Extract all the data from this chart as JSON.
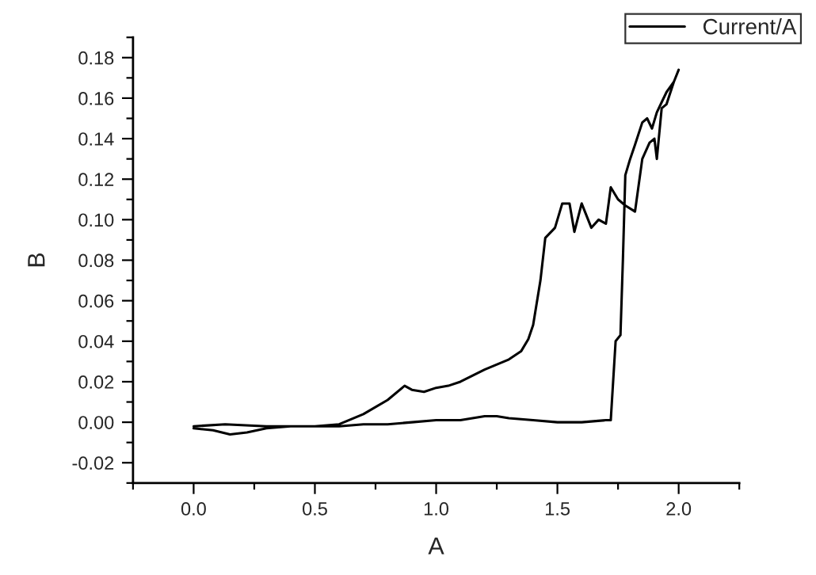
{
  "chart_data": {
    "type": "line",
    "xlabel": "A",
    "ylabel": "B",
    "xlim": [
      -0.25,
      2.25
    ],
    "xticks": [
      {
        "value": 0,
        "label": "0.0"
      },
      0.5,
      {
        "value": 1,
        "label": "1.0"
      },
      1.5,
      {
        "value": 2,
        "label": "2.0"
      }
    ],
    "ylim": [
      -0.03,
      0.19
    ],
    "yticks": [
      -0.02,
      {
        "value": 0,
        "label": "0.00"
      },
      0.02,
      0.04,
      0.06,
      0.08,
      {
        "value": 0.1,
        "label": "0.10"
      },
      0.12,
      0.14,
      0.16,
      0.18
    ],
    "grid": false,
    "legend": "top right",
    "marker": "none",
    "line_style": "solid",
    "series": [
      {
        "name": "Current/A",
        "color": "#000000",
        "x": [
          0,
          0.08,
          0.15,
          0.22,
          0.3,
          0.4,
          0.5,
          0.6,
          0.7,
          0.8,
          0.9,
          1.0,
          1.1,
          1.2,
          1.25,
          1.3,
          1.4,
          1.5,
          1.6,
          1.7,
          1.72,
          1.74,
          1.76,
          1.77,
          1.78,
          1.8,
          1.82,
          1.85,
          1.87,
          1.89,
          1.91,
          1.93,
          1.95,
          1.98,
          2.0,
          1.98,
          1.95,
          1.93,
          1.91,
          1.9,
          1.88,
          1.85,
          1.82,
          1.78,
          1.75,
          1.72,
          1.7,
          1.67,
          1.64,
          1.6,
          1.57,
          1.55,
          1.52,
          1.49,
          1.45,
          1.43,
          1.4,
          1.38,
          1.35,
          1.3,
          1.2,
          1.1,
          1.05,
          1.0,
          0.95,
          0.9,
          0.87,
          0.8,
          0.7,
          0.6,
          0.5,
          0.4,
          0.3,
          0.13,
          0
        ],
        "values": [
          -0.003,
          -0.004,
          -0.006,
          -0.005,
          -0.003,
          -0.002,
          -0.002,
          -0.002,
          -0.001,
          -0.001,
          0,
          0.001,
          0.001,
          0.003,
          0.003,
          0.002,
          0.001,
          0,
          0,
          0.001,
          0.001,
          0.04,
          0.043,
          0.08,
          0.122,
          0.13,
          0.137,
          0.148,
          0.15,
          0.145,
          0.153,
          0.158,
          0.163,
          0.168,
          0.174,
          0.168,
          0.157,
          0.155,
          0.13,
          0.14,
          0.138,
          0.13,
          0.104,
          0.107,
          0.11,
          0.116,
          0.098,
          0.1,
          0.096,
          0.108,
          0.094,
          0.108,
          0.108,
          0.096,
          0.091,
          0.07,
          0.048,
          0.041,
          0.035,
          0.031,
          0.026,
          0.02,
          0.018,
          0.017,
          0.015,
          0.016,
          0.018,
          0.011,
          0.004,
          -0.001,
          -0.002,
          -0.002,
          -0.002,
          -0.001,
          -0.002
        ]
      }
    ]
  }
}
